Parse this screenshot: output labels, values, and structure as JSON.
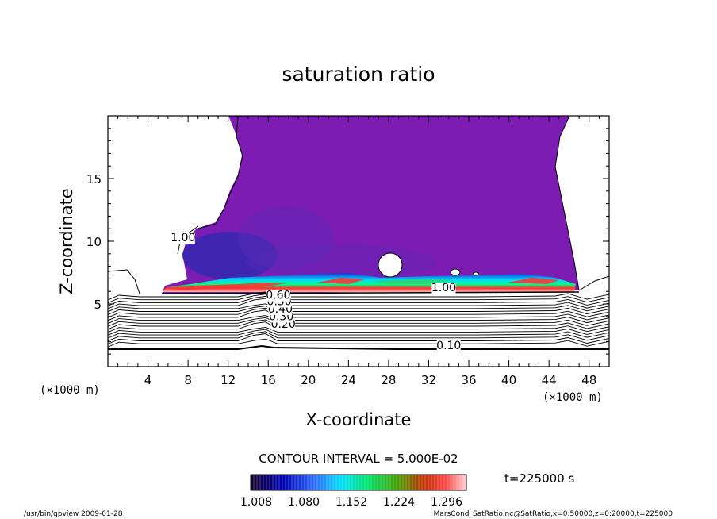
{
  "chart_data": {
    "type": "heatmap",
    "title": "saturation ratio",
    "xlabel": "X-coordinate",
    "ylabel": "Z-coordinate",
    "x_unit": "(×1000 m)",
    "z_unit": "(×1000 m)",
    "xlim": [
      0,
      50
    ],
    "ylim": [
      0,
      20
    ],
    "x_ticks": [
      4,
      8,
      12,
      16,
      20,
      24,
      28,
      32,
      36,
      40,
      44,
      48
    ],
    "y_ticks": [
      5,
      10,
      15
    ],
    "contour_interval_text": "CONTOUR INTERVAL = 5.000E-02",
    "time_label": "t=225000 s",
    "colorbar": {
      "tick_labels": [
        "1.008",
        "1.080",
        "1.152",
        "1.224",
        "1.296"
      ],
      "colors": [
        "#1a0033",
        "#0000ff",
        "#00e5ff",
        "#00ff66",
        "#ff0000",
        "#ffcccc"
      ]
    },
    "contour_labels": [
      {
        "text": "0.10",
        "x": 34,
        "z": 1.4
      },
      {
        "text": "0.20",
        "x": 17.5,
        "z": 3.1
      },
      {
        "text": "0.30",
        "x": 17.3,
        "z": 3.7
      },
      {
        "text": "0.40",
        "x": 17.2,
        "z": 4.3
      },
      {
        "text": "0.50",
        "x": 17.1,
        "z": 4.9
      },
      {
        "text": "0.60",
        "x": 17.0,
        "z": 5.4
      },
      {
        "text": "1.00",
        "x": 33.5,
        "z": 6.0
      },
      {
        "text": "1.00",
        "x": 7.5,
        "z": 10.0
      }
    ],
    "colors": {
      "saturated_region": "#7d1cb3",
      "cloud_band_low": "#1e2ad0",
      "cloud_band_mid": "#00d8ff",
      "cloud_band_high": "#ff3030"
    }
  },
  "footer_left": "/usr/bin/gpview  2009-01-28",
  "footer_right": "MarsCond_SatRatio.nc@SatRatio,x=0:50000,z=0:20000,t=225000"
}
